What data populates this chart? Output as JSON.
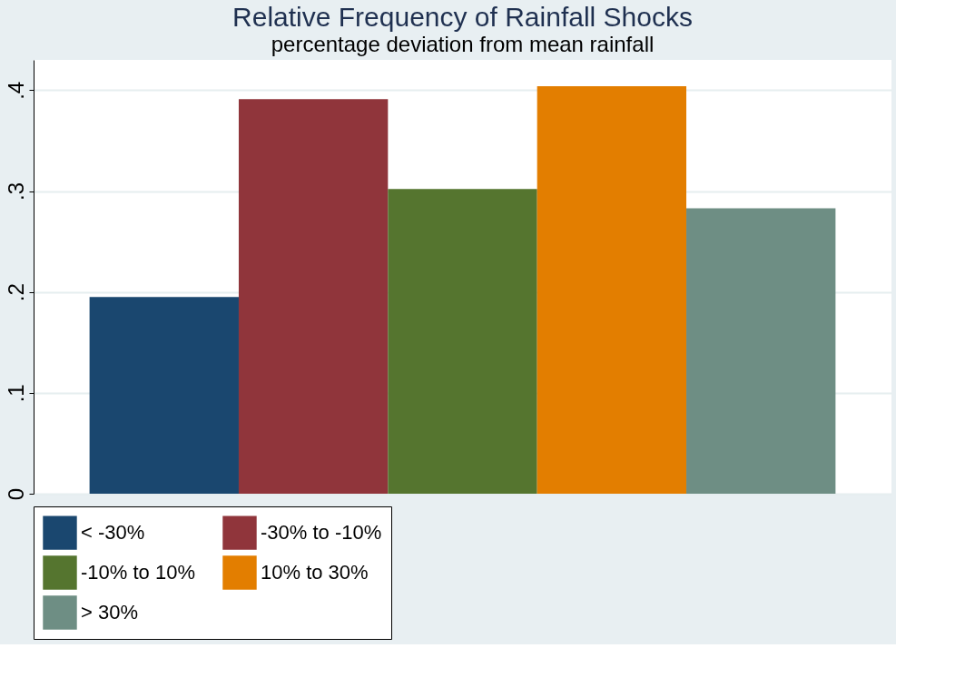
{
  "chart_data": {
    "type": "bar",
    "title": "Relative Frequency of Rainfall Shocks",
    "subtitle": "percentage deviation from mean rainfall",
    "categories": [
      null
    ],
    "series": [
      {
        "name": "< -30%",
        "color": "#1a476f",
        "values": [
          0.195
        ]
      },
      {
        "name": "-30% to -10%",
        "color": "#90353b",
        "values": [
          0.391
        ]
      },
      {
        "name": "-10% to 10%",
        "color": "#55752f",
        "values": [
          0.302
        ]
      },
      {
        "name": "10% to 30%",
        "color": "#e37e00",
        "values": [
          0.404
        ]
      },
      {
        "name": "> 30%",
        "color": "#6e8e84",
        "values": [
          0.283
        ]
      }
    ],
    "ylim": [
      0,
      0.43
    ],
    "yticks": [
      0,
      {
        "value": 0.1,
        "label": ".1"
      },
      {
        "value": 0.2,
        "label": ".2"
      },
      {
        "value": 0.3,
        "label": ".3"
      },
      {
        "value": 0.4,
        "label": ".4"
      }
    ],
    "grid": "y",
    "legend": "bottom"
  }
}
